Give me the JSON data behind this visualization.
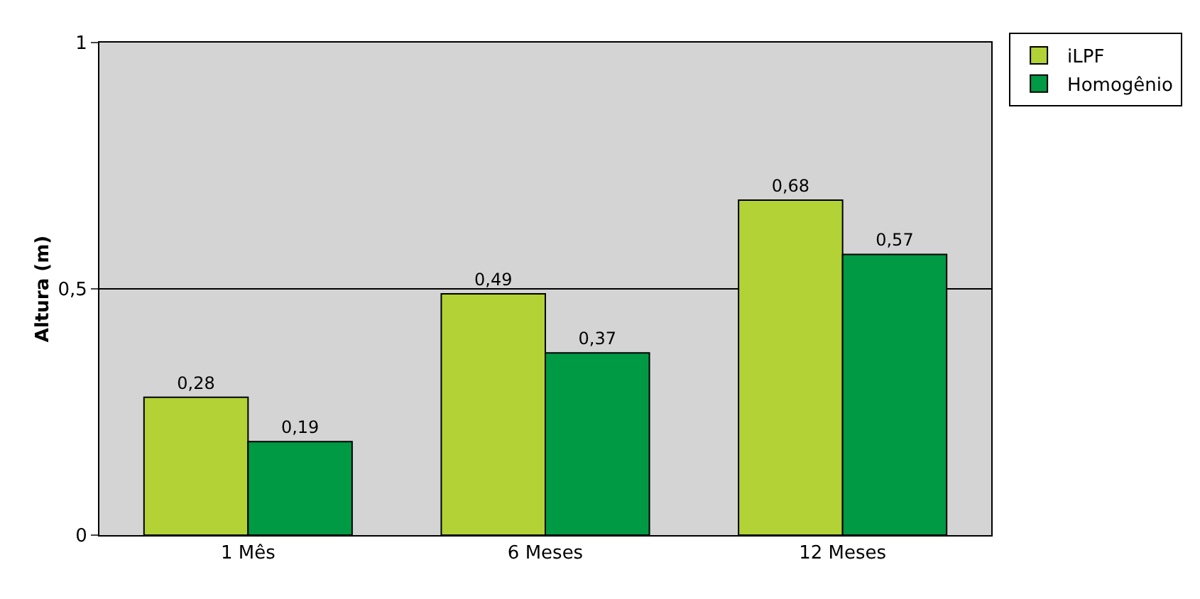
{
  "chart_data": {
    "type": "bar",
    "ylabel": "Altura (m)",
    "categories": [
      "1 Mês",
      "6 Meses",
      "12 Meses"
    ],
    "series": [
      {
        "name": "iLPF",
        "color": "#b2d235",
        "values": [
          0.28,
          0.49,
          0.68
        ],
        "value_labels": [
          "0,28",
          "0,49",
          "0,68"
        ]
      },
      {
        "name": "Homogênio",
        "color": "#009a44",
        "values": [
          0.19,
          0.37,
          0.57
        ],
        "value_labels": [
          "0,19",
          "0,37",
          "0,57"
        ]
      }
    ],
    "ylim": [
      0,
      1
    ],
    "yticks": [
      0,
      {
        "value": 0.5,
        "label": "0,5"
      },
      1
    ],
    "grid": "y",
    "legend": "top right"
  }
}
